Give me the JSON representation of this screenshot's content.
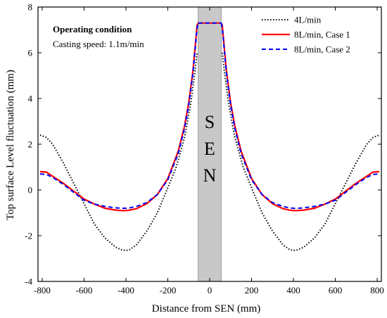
{
  "chart_data": {
    "type": "line",
    "xlabel": "Distance from SEN (mm)",
    "ylabel": "Top surface Level fluctuation (mm)",
    "xlim": [
      -820,
      820
    ],
    "ylim": [
      -4,
      8
    ],
    "xticks": [
      -800,
      -600,
      -400,
      -200,
      0,
      200,
      400,
      600,
      800
    ],
    "yticks": [
      -4,
      -2,
      0,
      2,
      4,
      6,
      8
    ],
    "grid": false,
    "legend_position": "top-right",
    "annotation": {
      "title": "Operating condition",
      "text": "Casting speed: 1.1m/min"
    },
    "sen": {
      "label_letters": [
        "S",
        "E",
        "N"
      ],
      "x_range": [
        -55,
        55
      ],
      "color": "#c8c8c8"
    },
    "series": [
      {
        "name": "4L/min",
        "color": "#000000",
        "style": "dotted",
        "x": [
          -810,
          -780,
          -750,
          -700,
          -650,
          -600,
          -550,
          -500,
          -450,
          -420,
          -400,
          -380,
          -350,
          -300,
          -250,
          -200,
          -160,
          -120,
          -90,
          -70,
          -60
        ],
        "y": [
          2.4,
          2.3,
          2.0,
          1.2,
          0.3,
          -0.6,
          -1.5,
          -2.1,
          -2.5,
          -2.62,
          -2.65,
          -2.6,
          -2.4,
          -1.8,
          -1.0,
          0.1,
          1.0,
          2.3,
          3.8,
          5.2,
          6.0
        ]
      },
      {
        "name": "8L/min, Case 1",
        "color": "#ff0000",
        "style": "solid",
        "x": [
          -810,
          -780,
          -750,
          -700,
          -650,
          -600,
          -550,
          -500,
          -450,
          -420,
          -400,
          -380,
          -350,
          -300,
          -250,
          -200,
          -150,
          -120,
          -100,
          -80,
          -70,
          -60,
          -55
        ],
        "y": [
          0.8,
          0.78,
          0.6,
          0.3,
          -0.05,
          -0.4,
          -0.62,
          -0.8,
          -0.88,
          -0.9,
          -0.9,
          -0.88,
          -0.82,
          -0.6,
          -0.2,
          0.5,
          1.7,
          2.8,
          3.8,
          5.2,
          6.2,
          7.2,
          7.3
        ]
      },
      {
        "name": "8L/min, Case 2",
        "color": "#0000ff",
        "style": "dashed",
        "x": [
          -810,
          -780,
          -750,
          -700,
          -650,
          -600,
          -550,
          -500,
          -450,
          -420,
          -400,
          -380,
          -350,
          -300,
          -250,
          -200,
          -150,
          -120,
          -100,
          -80,
          -70,
          -60,
          -55
        ],
        "y": [
          0.7,
          0.68,
          0.55,
          0.25,
          -0.1,
          -0.45,
          -0.62,
          -0.72,
          -0.78,
          -0.8,
          -0.8,
          -0.78,
          -0.72,
          -0.55,
          -0.2,
          0.45,
          1.6,
          2.7,
          3.7,
          5.1,
          6.1,
          7.1,
          7.3
        ]
      }
    ]
  }
}
